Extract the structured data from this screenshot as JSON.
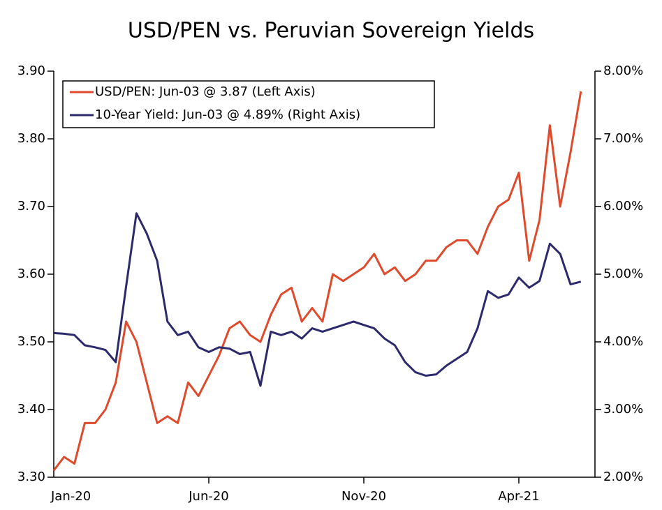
{
  "chart_data": {
    "type": "line",
    "title": "USD/PEN vs. Peruvian Sovereign Yields",
    "categories": [
      "Jan-20",
      null,
      null,
      null,
      null,
      null,
      null,
      null,
      null,
      null,
      null,
      null,
      null,
      null,
      null,
      "Jun-20",
      null,
      null,
      null,
      null,
      null,
      null,
      null,
      null,
      null,
      null,
      null,
      null,
      null,
      null,
      "Nov-20",
      null,
      null,
      null,
      null,
      null,
      null,
      null,
      null,
      null,
      null,
      null,
      null,
      null,
      null,
      "Apr-21",
      null,
      null,
      null,
      null,
      null,
      null
    ],
    "series": [
      {
        "name": "USD/PEN: Jun-03 @ 3.87 (Left Axis)",
        "color": "#e04a2c",
        "axis": "y",
        "values": [
          3.31,
          3.33,
          3.32,
          3.38,
          3.38,
          3.4,
          3.44,
          3.53,
          3.5,
          3.44,
          3.38,
          3.39,
          3.38,
          3.44,
          3.42,
          3.45,
          3.48,
          3.52,
          3.53,
          3.51,
          3.5,
          3.54,
          3.57,
          3.58,
          3.53,
          3.55,
          3.53,
          3.6,
          3.59,
          3.6,
          3.61,
          3.63,
          3.6,
          3.61,
          3.59,
          3.6,
          3.62,
          3.62,
          3.64,
          3.65,
          3.65,
          3.63,
          3.67,
          3.7,
          3.71,
          3.75,
          3.62,
          3.68,
          3.82,
          3.7,
          3.78,
          3.87
        ]
      },
      {
        "name": "10-Year Yield: Jun-03 @ 4.89% (Right Axis)",
        "color": "#2d2a6b",
        "axis": "y2",
        "values": [
          4.13,
          4.12,
          4.1,
          3.95,
          3.92,
          3.88,
          3.7,
          4.82,
          5.9,
          5.6,
          5.2,
          4.3,
          4.1,
          4.15,
          3.92,
          3.85,
          3.92,
          3.9,
          3.82,
          3.85,
          3.35,
          4.15,
          4.1,
          4.15,
          4.05,
          4.2,
          4.15,
          4.2,
          4.25,
          4.3,
          4.25,
          4.2,
          4.05,
          3.95,
          3.7,
          3.55,
          3.5,
          3.52,
          3.65,
          3.75,
          3.85,
          4.2,
          4.75,
          4.65,
          4.7,
          4.95,
          4.8,
          4.9,
          5.45,
          5.3,
          4.85,
          4.89
        ]
      }
    ],
    "ylim": [
      3.3,
      3.9
    ],
    "yticks": [
      {
        "value": 3.3,
        "label": "3.30"
      },
      {
        "value": 3.4,
        "label": "3.40"
      },
      {
        "value": 3.5,
        "label": "3.50"
      },
      {
        "value": 3.6,
        "label": "3.60"
      },
      {
        "value": 3.7,
        "label": "3.70"
      },
      {
        "value": 3.8,
        "label": "3.80"
      },
      {
        "value": 3.9,
        "label": "3.90"
      }
    ],
    "y2lim": [
      2,
      8
    ],
    "y2ticks": [
      {
        "value": 2,
        "label": "2.00%"
      },
      {
        "value": 3,
        "label": "3.00%"
      },
      {
        "value": 4,
        "label": "4.00%"
      },
      {
        "value": 5,
        "label": "5.00%"
      },
      {
        "value": 6,
        "label": "6.00%"
      },
      {
        "value": 7,
        "label": "7.00%"
      },
      {
        "value": 8,
        "label": "8.00%"
      }
    ],
    "legend": "upper left",
    "grid": false
  }
}
